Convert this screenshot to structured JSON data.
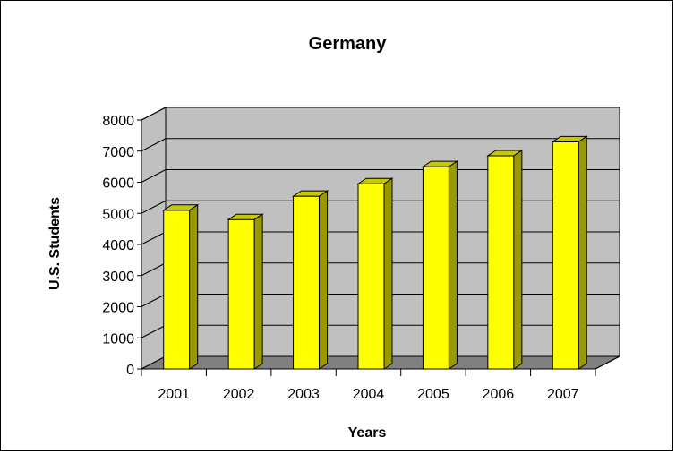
{
  "chart_data": {
    "type": "bar",
    "title": "Germany",
    "xlabel": "Years",
    "ylabel": "U.S. Students",
    "categories": [
      "2001",
      "2002",
      "2003",
      "2004",
      "2005",
      "2006",
      "2007"
    ],
    "values": [
      5100,
      4800,
      5550,
      5950,
      6500,
      6850,
      7300
    ],
    "ylim": [
      0,
      8000
    ],
    "yticks": [
      "0",
      "1000",
      "2000",
      "3000",
      "4000",
      "5000",
      "6000",
      "7000",
      "8000"
    ],
    "grid": true,
    "legend": "none",
    "colors": {
      "bar_front": "#ffff00",
      "bar_top": "#c8c800",
      "bar_side": "#9a9a00",
      "wall": "#c0c0c0",
      "floor": "#808080"
    }
  }
}
